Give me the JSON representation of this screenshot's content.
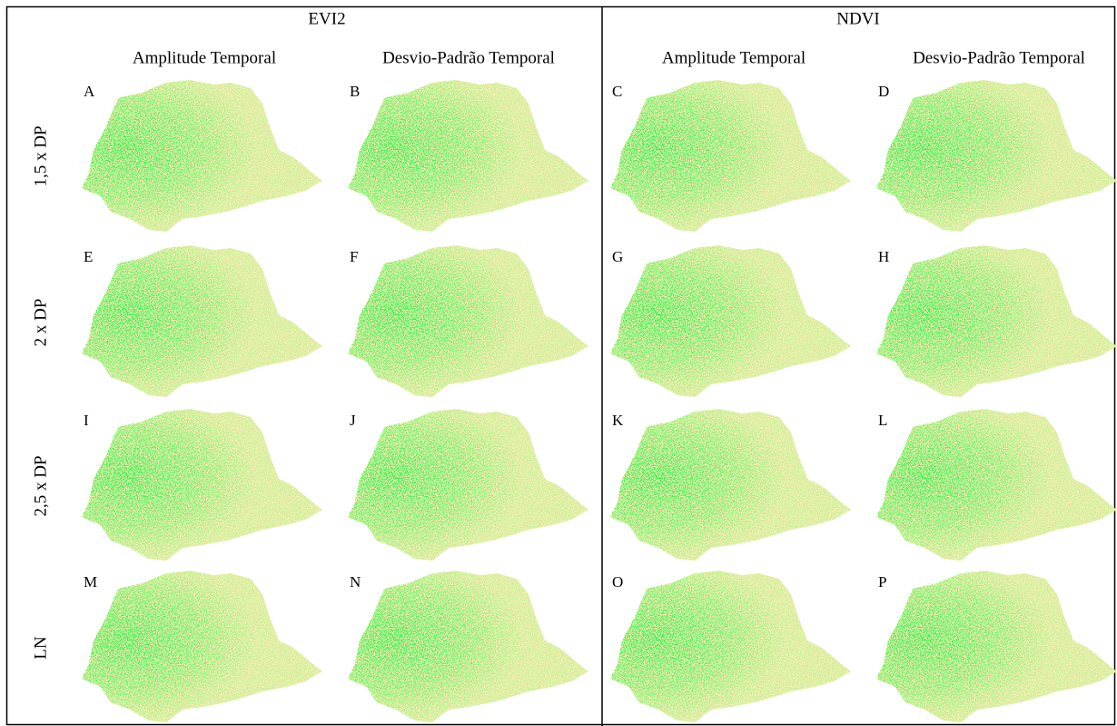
{
  "groups": [
    {
      "title": "EVI2",
      "columns": [
        "Amplitude Temporal",
        "Desvio-Padrão Temporal"
      ]
    },
    {
      "title": "NDVI",
      "columns": [
        "Amplitude Temporal",
        "Desvio-Padrão Temporal"
      ]
    }
  ],
  "rows": [
    "1,5 x DP",
    "2 x DP",
    "2,5 x DP",
    "LN"
  ],
  "panels": [
    [
      "A",
      "B",
      "C",
      "D"
    ],
    [
      "E",
      "F",
      "G",
      "H"
    ],
    [
      "I",
      "J",
      "K",
      "L"
    ],
    [
      "M",
      "N",
      "O",
      "P"
    ]
  ]
}
